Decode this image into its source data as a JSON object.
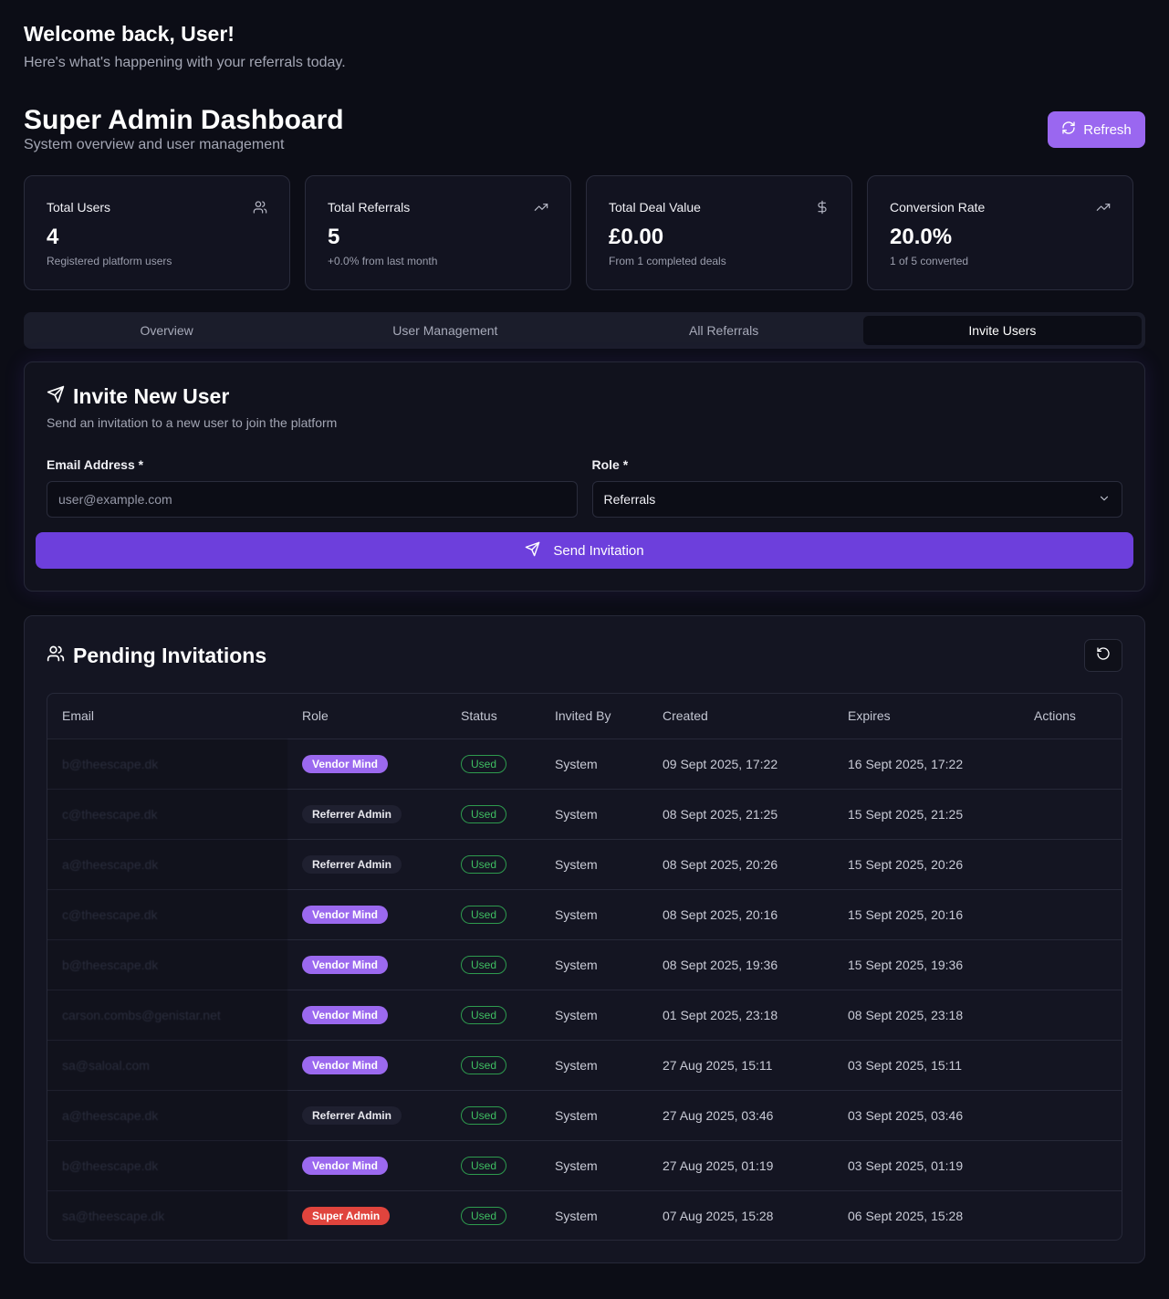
{
  "welcome": {
    "title": "Welcome back, User!",
    "subtitle": "Here's what's happening with your referrals today."
  },
  "dashboard": {
    "title": "Super Admin Dashboard",
    "subtitle": "System overview and user management",
    "refresh_label": "Refresh"
  },
  "stats": [
    {
      "title": "Total Users",
      "value": "4",
      "sub": "Registered platform users",
      "icon": "users-icon"
    },
    {
      "title": "Total Referrals",
      "value": "5",
      "sub": "+0.0% from last month",
      "icon": "trending-up-icon"
    },
    {
      "title": "Total Deal Value",
      "value": "£0.00",
      "sub": "From 1 completed deals",
      "icon": "dollar-icon"
    },
    {
      "title": "Conversion Rate",
      "value": "20.0%",
      "sub": "1 of 5 converted",
      "icon": "trending-up-icon"
    }
  ],
  "tabs": [
    {
      "label": "Overview",
      "active": false
    },
    {
      "label": "User Management",
      "active": false
    },
    {
      "label": "All Referrals",
      "active": false
    },
    {
      "label": "Invite Users",
      "active": true
    }
  ],
  "invite": {
    "title": "Invite New User",
    "subtitle": "Send an invitation to a new user to join the platform",
    "email_label": "Email Address *",
    "email_placeholder": "user@example.com",
    "role_label": "Role *",
    "role_value": "Referrals",
    "send_label": "Send Invitation"
  },
  "pending": {
    "title": "Pending Invitations",
    "columns": [
      "Email",
      "Role",
      "Status",
      "Invited By",
      "Created",
      "Expires",
      "Actions"
    ],
    "rows": [
      {
        "email": "b@theescape.dk",
        "role": "Vendor Mind",
        "role_type": "vendor",
        "status": "Used",
        "invited_by": "System",
        "created": "09 Sept 2025, 17:22",
        "expires": "16 Sept 2025, 17:22"
      },
      {
        "email": "c@theescape.dk",
        "role": "Referrer Admin",
        "role_type": "referrer",
        "status": "Used",
        "invited_by": "System",
        "created": "08 Sept 2025, 21:25",
        "expires": "15 Sept 2025, 21:25"
      },
      {
        "email": "a@theescape.dk",
        "role": "Referrer Admin",
        "role_type": "referrer",
        "status": "Used",
        "invited_by": "System",
        "created": "08 Sept 2025, 20:26",
        "expires": "15 Sept 2025, 20:26"
      },
      {
        "email": "c@theescape.dk",
        "role": "Vendor Mind",
        "role_type": "vendor",
        "status": "Used",
        "invited_by": "System",
        "created": "08 Sept 2025, 20:16",
        "expires": "15 Sept 2025, 20:16"
      },
      {
        "email": "b@theescape.dk",
        "role": "Vendor Mind",
        "role_type": "vendor",
        "status": "Used",
        "invited_by": "System",
        "created": "08 Sept 2025, 19:36",
        "expires": "15 Sept 2025, 19:36"
      },
      {
        "email": "carson.combs@genistar.net",
        "role": "Vendor Mind",
        "role_type": "vendor",
        "status": "Used",
        "invited_by": "System",
        "created": "01 Sept 2025, 23:18",
        "expires": "08 Sept 2025, 23:18"
      },
      {
        "email": "sa@saloal.com",
        "role": "Vendor Mind",
        "role_type": "vendor",
        "status": "Used",
        "invited_by": "System",
        "created": "27 Aug 2025, 15:11",
        "expires": "03 Sept 2025, 15:11"
      },
      {
        "email": "a@theescape.dk",
        "role": "Referrer Admin",
        "role_type": "referrer",
        "status": "Used",
        "invited_by": "System",
        "created": "27 Aug 2025, 03:46",
        "expires": "03 Sept 2025, 03:46"
      },
      {
        "email": "b@theescape.dk",
        "role": "Vendor Mind",
        "role_type": "vendor",
        "status": "Used",
        "invited_by": "System",
        "created": "27 Aug 2025, 01:19",
        "expires": "03 Sept 2025, 01:19"
      },
      {
        "email": "sa@theescape.dk",
        "role": "Super Admin",
        "role_type": "super",
        "status": "Used",
        "invited_by": "System",
        "created": "07 Aug 2025, 15:28",
        "expires": "06 Sept 2025, 15:28"
      }
    ]
  },
  "colors": {
    "background": "#0c0d16",
    "accent": "#9a67f0",
    "primary_button": "#6d3fdc",
    "vendor_badge": "#9b69ef",
    "super_badge": "#e0443d",
    "status_green": "#3fbf62"
  }
}
